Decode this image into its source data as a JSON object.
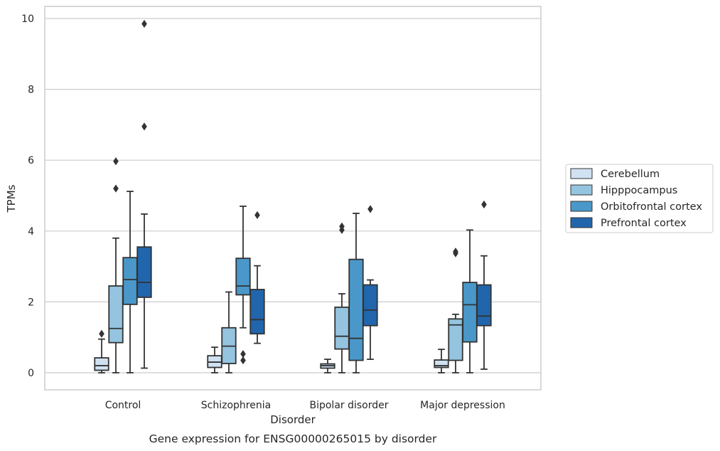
{
  "chart_data": {
    "type": "box",
    "caption": "Gene expression for ENSG00000265015 by disorder",
    "xlabel": "Disorder",
    "ylabel": "TPMs",
    "ylim": [
      -0.45,
      10.35
    ],
    "yticks": [
      0,
      2,
      4,
      6,
      8,
      10
    ],
    "grid": "horizontal",
    "legend_position": "right",
    "categories": [
      "Control",
      "Schizophrenia",
      "Bipolar disorder",
      "Major depression"
    ],
    "series": [
      {
        "name": "Cerebellum",
        "color": "#d0e1f2",
        "boxes": [
          {
            "low": 0.0,
            "q1": 0.07,
            "median": 0.2,
            "q3": 0.42,
            "high": 0.95,
            "outliers": [
              1.1
            ]
          },
          {
            "low": 0.0,
            "q1": 0.15,
            "median": 0.3,
            "q3": 0.48,
            "high": 0.72,
            "outliers": []
          },
          {
            "low": 0.0,
            "q1": 0.13,
            "median": 0.2,
            "q3": 0.25,
            "high": 0.38,
            "outliers": []
          },
          {
            "low": 0.0,
            "q1": 0.15,
            "median": 0.2,
            "q3": 0.36,
            "high": 0.66,
            "outliers": []
          }
        ]
      },
      {
        "name": "Hipppocampus",
        "color": "#94c4df",
        "boxes": [
          {
            "low": 0.0,
            "q1": 0.85,
            "median": 1.25,
            "q3": 2.45,
            "high": 3.8,
            "outliers": [
              5.2,
              5.97
            ]
          },
          {
            "low": 0.0,
            "q1": 0.26,
            "median": 0.75,
            "q3": 1.27,
            "high": 2.28,
            "outliers": []
          },
          {
            "low": 0.0,
            "q1": 0.67,
            "median": 1.03,
            "q3": 1.85,
            "high": 2.23,
            "outliers": [
              4.03,
              4.13
            ]
          },
          {
            "low": 0.0,
            "q1": 0.35,
            "median": 1.35,
            "q3": 1.52,
            "high": 1.65,
            "outliers": [
              3.37,
              3.42
            ]
          }
        ]
      },
      {
        "name": "Orbitofrontal cortex",
        "color": "#4a98c9",
        "boxes": [
          {
            "low": 0.0,
            "q1": 1.93,
            "median": 2.63,
            "q3": 3.25,
            "high": 5.12,
            "outliers": []
          },
          {
            "low": 1.27,
            "q1": 2.2,
            "median": 2.45,
            "q3": 3.23,
            "high": 4.7,
            "outliers": [
              0.35,
              0.53
            ]
          },
          {
            "low": 0.0,
            "q1": 0.35,
            "median": 0.97,
            "q3": 3.2,
            "high": 4.5,
            "outliers": []
          },
          {
            "low": 0.0,
            "q1": 0.87,
            "median": 1.92,
            "q3": 2.55,
            "high": 4.03,
            "outliers": []
          }
        ]
      },
      {
        "name": "Prefrontal cortex",
        "color": "#2166ac",
        "boxes": [
          {
            "low": 0.13,
            "q1": 2.13,
            "median": 2.55,
            "q3": 3.55,
            "high": 4.48,
            "outliers": [
              6.95,
              9.85
            ]
          },
          {
            "low": 0.83,
            "q1": 1.1,
            "median": 1.5,
            "q3": 2.35,
            "high": 3.02,
            "outliers": [
              4.45
            ]
          },
          {
            "low": 0.38,
            "q1": 1.33,
            "median": 1.77,
            "q3": 2.48,
            "high": 2.62,
            "outliers": [
              4.62
            ]
          },
          {
            "low": 0.1,
            "q1": 1.33,
            "median": 1.6,
            "q3": 2.48,
            "high": 3.3,
            "outliers": [
              4.75
            ]
          }
        ]
      }
    ]
  }
}
